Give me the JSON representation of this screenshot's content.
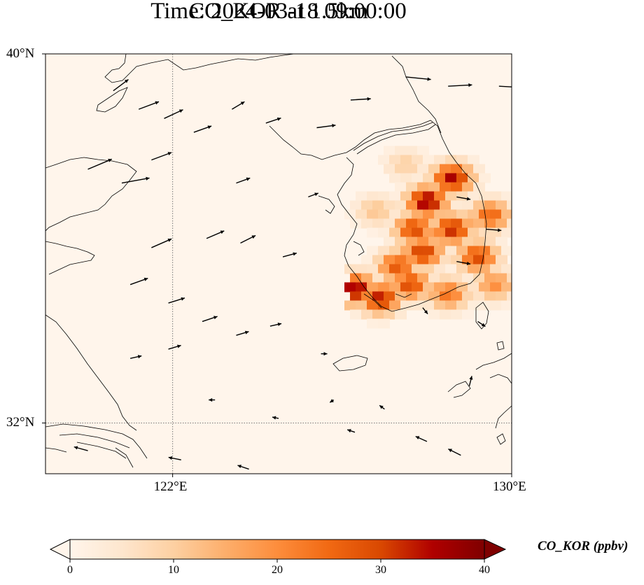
{
  "title": {
    "line1": "CO_KOR at 1.5km",
    "line2": "Time: 2024-03-18 09:00:00"
  },
  "map": {
    "extent": {
      "lon_min": 119,
      "lon_max": 130,
      "lat_min": 30.9,
      "lat_max": 40
    },
    "gridlines": [
      {
        "lon": 122
      },
      {
        "lat": 32
      }
    ],
    "lon_ticks": [
      {
        "value": 122,
        "label": "122°E"
      },
      {
        "value": 130,
        "label": "130°E"
      }
    ],
    "lat_ticks": [
      {
        "value": 40,
        "label": "40°N"
      },
      {
        "value": 32,
        "label": "32°N"
      }
    ],
    "background_color": "#fff5eb",
    "coast_color": "#000000"
  },
  "colorbar": {
    "label": "CO_KOR (ppbv)",
    "ticks": [
      "0",
      "10",
      "20",
      "30",
      "40"
    ],
    "min": 0,
    "max": 40,
    "colors": [
      "#fff5eb",
      "#fee6ce",
      "#fdd0a2",
      "#fdae6b",
      "#fd8d3c",
      "#f16913",
      "#d94801",
      "#b00000",
      "#7f0000"
    ]
  },
  "chart_data": {
    "type": "heatmap",
    "variable": "CO_KOR",
    "units": "ppbv",
    "plumes": [
      {
        "lon": 128.6,
        "lat": 37.3,
        "value": 36
      },
      {
        "lon": 128.0,
        "lat": 36.8,
        "value": 38
      },
      {
        "lon": 128.6,
        "lat": 36.2,
        "value": 33
      },
      {
        "lon": 127.9,
        "lat": 35.7,
        "value": 32
      },
      {
        "lon": 127.3,
        "lat": 35.4,
        "value": 28
      },
      {
        "lon": 127.7,
        "lat": 36.2,
        "value": 30
      },
      {
        "lon": 126.3,
        "lat": 34.9,
        "value": 38
      },
      {
        "lon": 126.9,
        "lat": 34.7,
        "value": 34
      },
      {
        "lon": 127.6,
        "lat": 35.0,
        "value": 30
      },
      {
        "lon": 129.2,
        "lat": 35.6,
        "value": 30
      },
      {
        "lon": 129.5,
        "lat": 36.5,
        "value": 26
      },
      {
        "lon": 128.5,
        "lat": 34.8,
        "value": 24
      },
      {
        "lon": 129.6,
        "lat": 35.0,
        "value": 20
      },
      {
        "lon": 127.5,
        "lat": 37.6,
        "value": 10
      },
      {
        "lon": 126.8,
        "lat": 36.6,
        "value": 12
      }
    ],
    "wind_vectors": [
      {
        "lon": 120.6,
        "lat": 39.2,
        "u": 1.2,
        "v": 0.9
      },
      {
        "lon": 121.2,
        "lat": 38.8,
        "u": 1.6,
        "v": 0.6
      },
      {
        "lon": 121.8,
        "lat": 38.6,
        "u": 1.5,
        "v": 0.7
      },
      {
        "lon": 122.5,
        "lat": 38.3,
        "u": 1.4,
        "v": 0.5
      },
      {
        "lon": 123.4,
        "lat": 38.8,
        "u": 1.0,
        "v": 0.6
      },
      {
        "lon": 124.2,
        "lat": 38.5,
        "u": 1.2,
        "v": 0.4
      },
      {
        "lon": 125.4,
        "lat": 38.4,
        "u": 1.5,
        "v": 0.2
      },
      {
        "lon": 126.2,
        "lat": 39.0,
        "u": 1.6,
        "v": 0.1
      },
      {
        "lon": 127.5,
        "lat": 39.5,
        "u": 2.0,
        "v": -0.2
      },
      {
        "lon": 128.5,
        "lat": 39.3,
        "u": 1.9,
        "v": 0.1
      },
      {
        "lon": 129.7,
        "lat": 39.3,
        "u": 1.8,
        "v": -0.1
      },
      {
        "lon": 120.0,
        "lat": 37.5,
        "u": 1.9,
        "v": 0.8
      },
      {
        "lon": 120.8,
        "lat": 37.2,
        "u": 2.2,
        "v": 0.4
      },
      {
        "lon": 121.5,
        "lat": 37.7,
        "u": 1.6,
        "v": 0.6
      },
      {
        "lon": 123.5,
        "lat": 37.2,
        "u": 1.1,
        "v": 0.4
      },
      {
        "lon": 125.2,
        "lat": 36.9,
        "u": 0.8,
        "v": 0.3
      },
      {
        "lon": 121.5,
        "lat": 35.8,
        "u": 1.6,
        "v": 0.7
      },
      {
        "lon": 122.8,
        "lat": 36.0,
        "u": 1.4,
        "v": 0.6
      },
      {
        "lon": 123.6,
        "lat": 35.9,
        "u": 1.2,
        "v": 0.6
      },
      {
        "lon": 124.6,
        "lat": 35.6,
        "u": 1.1,
        "v": 0.3
      },
      {
        "lon": 121.0,
        "lat": 35.0,
        "u": 1.4,
        "v": 0.5
      },
      {
        "lon": 121.9,
        "lat": 34.6,
        "u": 1.3,
        "v": 0.4
      },
      {
        "lon": 122.7,
        "lat": 34.2,
        "u": 1.2,
        "v": 0.4
      },
      {
        "lon": 123.5,
        "lat": 33.9,
        "u": 1.0,
        "v": 0.3
      },
      {
        "lon": 124.3,
        "lat": 34.1,
        "u": 0.9,
        "v": 0.2
      },
      {
        "lon": 121.0,
        "lat": 33.4,
        "u": 0.9,
        "v": 0.2
      },
      {
        "lon": 121.9,
        "lat": 33.6,
        "u": 1.0,
        "v": 0.3
      },
      {
        "lon": 125.5,
        "lat": 33.5,
        "u": 0.5,
        "v": 0.0
      },
      {
        "lon": 125.8,
        "lat": 32.5,
        "u": -0.3,
        "v": -0.2
      },
      {
        "lon": 123.0,
        "lat": 32.5,
        "u": -0.5,
        "v": 0.0
      },
      {
        "lon": 124.5,
        "lat": 32.1,
        "u": -0.5,
        "v": 0.1
      },
      {
        "lon": 126.3,
        "lat": 31.8,
        "u": -0.6,
        "v": 0.2
      },
      {
        "lon": 127.0,
        "lat": 32.3,
        "u": -0.4,
        "v": 0.3
      },
      {
        "lon": 128.0,
        "lat": 31.6,
        "u": -0.9,
        "v": 0.4
      },
      {
        "lon": 128.8,
        "lat": 31.3,
        "u": -1.0,
        "v": 0.5
      },
      {
        "lon": 129.0,
        "lat": 32.8,
        "u": 0.2,
        "v": 0.8
      },
      {
        "lon": 128.7,
        "lat": 36.9,
        "u": 1.1,
        "v": -0.2
      },
      {
        "lon": 129.4,
        "lat": 36.2,
        "u": 1.2,
        "v": -0.1
      },
      {
        "lon": 128.7,
        "lat": 35.5,
        "u": 1.1,
        "v": -0.2
      },
      {
        "lon": 127.9,
        "lat": 34.5,
        "u": 0.4,
        "v": -0.5
      },
      {
        "lon": 129.2,
        "lat": 34.2,
        "u": 0.6,
        "v": -0.4
      },
      {
        "lon": 120.0,
        "lat": 31.4,
        "u": -1.1,
        "v": 0.3
      },
      {
        "lon": 122.2,
        "lat": 31.2,
        "u": -1.0,
        "v": 0.2
      },
      {
        "lon": 123.8,
        "lat": 31.0,
        "u": -0.9,
        "v": 0.3
      }
    ]
  }
}
